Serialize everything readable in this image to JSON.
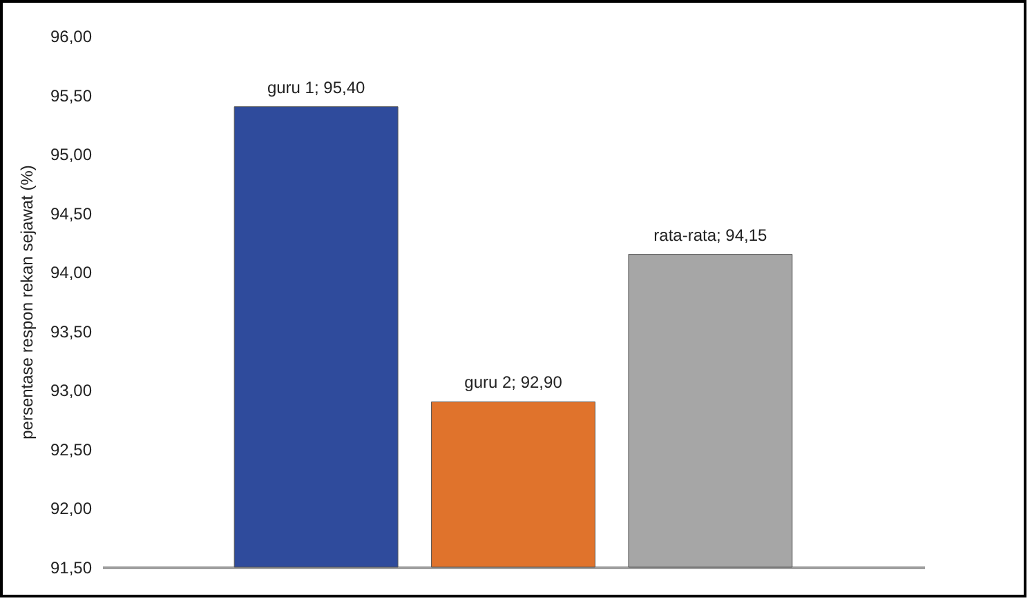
{
  "chart_data": {
    "type": "bar",
    "ylabel": "persentase respon rekan sejawat (%)",
    "categories": [
      null,
      null,
      null
    ],
    "values": [
      95.4,
      92.9,
      94.15
    ],
    "colors": [
      "#2f4b9c",
      "#e0732c",
      "#a6a6a6"
    ],
    "value_labels": [
      "guru 1; 95,40",
      "guru 2; 92,90",
      "rata-rata; 94,15"
    ],
    "ylim": [
      91.5,
      96
    ],
    "yticks": [
      {
        "value": 91.5,
        "label": "91,50"
      },
      {
        "value": 92,
        "label": "92,00"
      },
      {
        "value": 92.5,
        "label": "92,50"
      },
      {
        "value": 93,
        "label": "93,00"
      },
      {
        "value": 93.5,
        "label": "93,50"
      },
      {
        "value": 94,
        "label": "94,00"
      },
      {
        "value": 94.5,
        "label": "94,50"
      },
      {
        "value": 95,
        "label": "95,00"
      },
      {
        "value": 95.5,
        "label": "95,50"
      },
      {
        "value": 96,
        "label": "96,00"
      }
    ],
    "grid": false,
    "legend": false,
    "tick_labels": "y"
  }
}
